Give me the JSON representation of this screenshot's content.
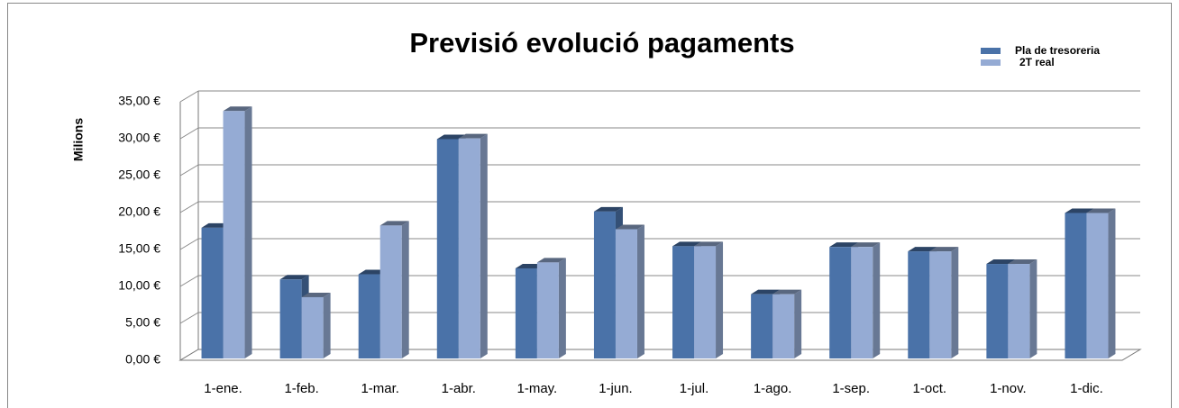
{
  "chart_data": {
    "type": "bar3d",
    "title": "Previsió evolució pagaments",
    "y_label": "Milions",
    "categories": [
      "1-ene.",
      "1-feb.",
      "1-mar.",
      "1-abr.",
      "1-may.",
      "1-jun.",
      "1-jul.",
      "1-ago.",
      "1-sep.",
      "1-oct.",
      "1-nov.",
      "1-dic."
    ],
    "series": [
      {
        "name": "Pla de tresoreria",
        "color": "#4a72a8",
        "values": [
          17.7,
          10.7,
          11.4,
          29.7,
          12.2,
          19.9,
          15.2,
          8.7,
          15.1,
          14.5,
          12.8,
          19.7
        ]
      },
      {
        "name": "2T real",
        "color": "#95abd4",
        "values": [
          33.5,
          8.3,
          18.0,
          29.8,
          13.0,
          17.5,
          15.2,
          8.7,
          15.1,
          14.5,
          12.8,
          19.7
        ]
      }
    ],
    "ylim": [
      0,
      35
    ],
    "yticks": [
      {
        "value": 0,
        "label": "0,00 €"
      },
      {
        "value": 5,
        "label": "5,00 €"
      },
      {
        "value": 10,
        "label": "10,00 €"
      },
      {
        "value": 15,
        "label": "15,00 €"
      },
      {
        "value": 20,
        "label": "20,00 €"
      },
      {
        "value": 25,
        "label": "25,00 €"
      },
      {
        "value": 30,
        "label": "30,00 €"
      },
      {
        "value": 35,
        "label": "35,00 €"
      }
    ],
    "grid": true,
    "legend": "top-right"
  }
}
